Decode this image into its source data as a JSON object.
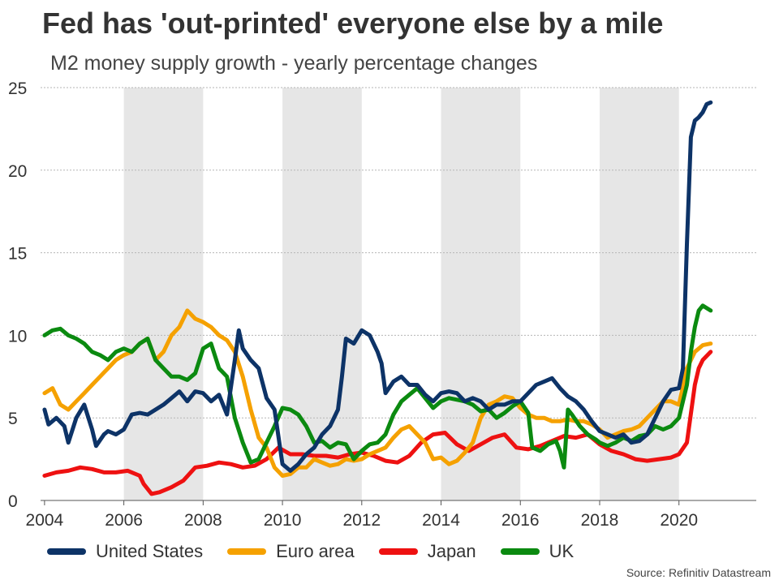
{
  "title": "Fed has 'out-printed' everyone else by a mile",
  "subtitle": "M2 money supply growth - yearly percentage changes",
  "source": "Source: Refinitiv Datastream",
  "chart_data": {
    "type": "line",
    "xlim": [
      2004,
      2022
    ],
    "ylim": [
      0,
      25
    ],
    "x_ticks": [
      2004,
      2006,
      2008,
      2010,
      2012,
      2014,
      2016,
      2018,
      2020
    ],
    "y_ticks": [
      0,
      5,
      10,
      15,
      20,
      25
    ],
    "grid": "horizontal dotted",
    "shaded_periods": [
      [
        2006,
        2008
      ],
      [
        2010,
        2012
      ],
      [
        2014,
        2016
      ],
      [
        2018,
        2020
      ]
    ],
    "legend_position": "bottom",
    "series": [
      {
        "name": "United States",
        "color": "#0d3367",
        "x": [
          2004.0,
          2004.1,
          2004.3,
          2004.5,
          2004.6,
          2004.8,
          2005.0,
          2005.2,
          2005.3,
          2005.5,
          2005.6,
          2005.8,
          2006.0,
          2006.2,
          2006.4,
          2006.6,
          2006.8,
          2007.0,
          2007.2,
          2007.4,
          2007.6,
          2007.8,
          2008.0,
          2008.2,
          2008.4,
          2008.6,
          2008.8,
          2008.9,
          2009.0,
          2009.2,
          2009.4,
          2009.6,
          2009.8,
          2010.0,
          2010.2,
          2010.4,
          2010.6,
          2010.8,
          2011.0,
          2011.2,
          2011.4,
          2011.5,
          2011.6,
          2011.8,
          2012.0,
          2012.2,
          2012.4,
          2012.5,
          2012.6,
          2012.8,
          2013.0,
          2013.2,
          2013.4,
          2013.6,
          2013.8,
          2014.0,
          2014.2,
          2014.4,
          2014.6,
          2014.8,
          2015.0,
          2015.2,
          2015.4,
          2015.6,
          2015.8,
          2016.0,
          2016.2,
          2016.4,
          2016.6,
          2016.8,
          2017.0,
          2017.2,
          2017.4,
          2017.6,
          2017.8,
          2018.0,
          2018.2,
          2018.4,
          2018.6,
          2018.8,
          2019.0,
          2019.2,
          2019.4,
          2019.6,
          2019.8,
          2020.0,
          2020.1,
          2020.2,
          2020.3,
          2020.4,
          2020.5,
          2020.6,
          2020.7,
          2020.8
        ],
        "values": [
          5.5,
          4.6,
          5.0,
          4.5,
          3.5,
          5.0,
          5.8,
          4.3,
          3.3,
          4.0,
          4.2,
          4.0,
          4.3,
          5.2,
          5.3,
          5.2,
          5.5,
          5.8,
          6.2,
          6.6,
          6.0,
          6.6,
          6.5,
          6.0,
          6.4,
          5.2,
          8.5,
          10.3,
          9.2,
          8.5,
          8.0,
          6.2,
          5.5,
          2.2,
          1.8,
          2.2,
          2.8,
          3.2,
          4.0,
          4.5,
          5.5,
          7.5,
          9.8,
          9.5,
          10.3,
          10.0,
          9.0,
          8.3,
          6.5,
          7.2,
          7.5,
          7.0,
          7.0,
          6.4,
          6.0,
          6.5,
          6.6,
          6.5,
          6.0,
          6.2,
          6.0,
          5.5,
          5.8,
          5.8,
          6.0,
          6.0,
          6.5,
          7.0,
          7.2,
          7.4,
          6.8,
          6.3,
          6.0,
          5.5,
          4.8,
          4.2,
          4.0,
          3.8,
          4.0,
          3.5,
          3.6,
          4.0,
          5.0,
          6.0,
          6.7,
          6.8,
          8.0,
          15.5,
          22.0,
          23.0,
          23.2,
          23.5,
          24.0,
          24.1
        ]
      },
      {
        "name": "Euro area",
        "color": "#f5a100",
        "x": [
          2004.0,
          2004.2,
          2004.4,
          2004.6,
          2004.8,
          2005.0,
          2005.2,
          2005.4,
          2005.6,
          2005.8,
          2006.0,
          2006.2,
          2006.4,
          2006.6,
          2006.8,
          2007.0,
          2007.2,
          2007.4,
          2007.6,
          2007.8,
          2008.0,
          2008.2,
          2008.4,
          2008.6,
          2008.8,
          2009.0,
          2009.2,
          2009.4,
          2009.6,
          2009.8,
          2010.0,
          2010.2,
          2010.4,
          2010.6,
          2010.8,
          2011.0,
          2011.2,
          2011.4,
          2011.6,
          2011.8,
          2012.0,
          2012.2,
          2012.4,
          2012.6,
          2012.8,
          2013.0,
          2013.2,
          2013.4,
          2013.6,
          2013.8,
          2014.0,
          2014.2,
          2014.4,
          2014.6,
          2014.8,
          2015.0,
          2015.2,
          2015.4,
          2015.6,
          2015.8,
          2016.0,
          2016.2,
          2016.4,
          2016.6,
          2016.8,
          2017.0,
          2017.2,
          2017.4,
          2017.6,
          2017.8,
          2018.0,
          2018.2,
          2018.4,
          2018.6,
          2018.8,
          2019.0,
          2019.2,
          2019.4,
          2019.6,
          2019.8,
          2020.0,
          2020.2,
          2020.4,
          2020.6,
          2020.8
        ],
        "values": [
          6.5,
          6.8,
          5.8,
          5.5,
          6.0,
          6.5,
          7.0,
          7.5,
          8.0,
          8.5,
          8.8,
          9.0,
          9.5,
          9.8,
          8.5,
          9.0,
          10.0,
          10.5,
          11.5,
          11.0,
          10.8,
          10.5,
          10.0,
          9.7,
          9.0,
          7.5,
          5.5,
          3.8,
          3.2,
          2.0,
          1.5,
          1.6,
          2.0,
          2.0,
          2.5,
          2.3,
          2.1,
          2.2,
          2.5,
          2.4,
          2.5,
          2.8,
          3.0,
          3.2,
          3.8,
          4.3,
          4.5,
          4.0,
          3.5,
          2.5,
          2.6,
          2.2,
          2.4,
          2.9,
          3.5,
          5.0,
          5.8,
          6.0,
          6.3,
          6.2,
          5.6,
          5.2,
          5.0,
          5.0,
          4.8,
          4.8,
          4.9,
          4.8,
          4.8,
          4.6,
          4.3,
          3.8,
          4.0,
          4.2,
          4.3,
          4.5,
          5.0,
          5.5,
          6.0,
          6.0,
          5.8,
          8.0,
          9.0,
          9.4,
          9.5
        ]
      },
      {
        "name": "Japan",
        "color": "#ee1111",
        "x": [
          2004.0,
          2004.3,
          2004.6,
          2004.9,
          2005.2,
          2005.5,
          2005.8,
          2006.1,
          2006.4,
          2006.5,
          2006.7,
          2006.9,
          2007.2,
          2007.5,
          2007.8,
          2008.1,
          2008.4,
          2008.7,
          2009.0,
          2009.3,
          2009.6,
          2009.9,
          2010.2,
          2010.5,
          2010.8,
          2011.1,
          2011.4,
          2011.7,
          2012.0,
          2012.3,
          2012.6,
          2012.9,
          2013.2,
          2013.5,
          2013.8,
          2014.1,
          2014.4,
          2014.7,
          2015.0,
          2015.3,
          2015.6,
          2015.9,
          2016.2,
          2016.5,
          2016.8,
          2017.1,
          2017.4,
          2017.7,
          2018.0,
          2018.3,
          2018.6,
          2018.9,
          2019.2,
          2019.5,
          2019.8,
          2020.0,
          2020.2,
          2020.4,
          2020.5,
          2020.6,
          2020.8
        ],
        "values": [
          1.5,
          1.7,
          1.8,
          2.0,
          1.9,
          1.7,
          1.7,
          1.8,
          1.5,
          1.0,
          0.4,
          0.5,
          0.8,
          1.2,
          2.0,
          2.1,
          2.3,
          2.2,
          2.0,
          2.1,
          2.5,
          3.2,
          2.8,
          2.8,
          2.7,
          2.7,
          2.6,
          2.8,
          2.9,
          2.7,
          2.4,
          2.3,
          2.7,
          3.5,
          4.0,
          4.1,
          3.4,
          3.0,
          3.4,
          3.8,
          4.0,
          3.2,
          3.1,
          3.3,
          3.6,
          3.9,
          3.8,
          4.0,
          3.4,
          3.0,
          2.8,
          2.5,
          2.4,
          2.5,
          2.6,
          2.8,
          3.5,
          7.0,
          8.0,
          8.5,
          9.0
        ]
      },
      {
        "name": "UK",
        "color": "#0b8a10",
        "x": [
          2004.0,
          2004.2,
          2004.4,
          2004.6,
          2004.8,
          2005.0,
          2005.2,
          2005.4,
          2005.6,
          2005.8,
          2006.0,
          2006.2,
          2006.4,
          2006.6,
          2006.8,
          2007.0,
          2007.2,
          2007.4,
          2007.6,
          2007.8,
          2008.0,
          2008.2,
          2008.4,
          2008.6,
          2008.8,
          2009.0,
          2009.2,
          2009.4,
          2009.6,
          2009.8,
          2010.0,
          2010.2,
          2010.4,
          2010.6,
          2010.8,
          2011.0,
          2011.2,
          2011.4,
          2011.6,
          2011.8,
          2012.0,
          2012.2,
          2012.4,
          2012.6,
          2012.8,
          2013.0,
          2013.2,
          2013.4,
          2013.6,
          2013.8,
          2014.0,
          2014.2,
          2014.4,
          2014.6,
          2014.8,
          2015.0,
          2015.2,
          2015.4,
          2015.6,
          2015.8,
          2016.0,
          2016.2,
          2016.3,
          2016.5,
          2016.7,
          2016.9,
          2017.0,
          2017.1,
          2017.2,
          2017.3,
          2017.5,
          2017.7,
          2017.9,
          2018.0,
          2018.2,
          2018.4,
          2018.6,
          2018.8,
          2019.0,
          2019.2,
          2019.4,
          2019.6,
          2019.8,
          2020.0,
          2020.2,
          2020.3,
          2020.4,
          2020.5,
          2020.6,
          2020.8
        ],
        "values": [
          10.0,
          10.3,
          10.4,
          10.0,
          9.8,
          9.5,
          9.0,
          8.8,
          8.5,
          9.0,
          9.2,
          9.0,
          9.5,
          9.8,
          8.5,
          8.0,
          7.5,
          7.5,
          7.3,
          7.7,
          9.2,
          9.5,
          8.0,
          7.5,
          5.0,
          3.5,
          2.3,
          2.5,
          3.5,
          4.5,
          5.6,
          5.5,
          5.2,
          4.5,
          3.5,
          3.6,
          3.2,
          3.5,
          3.4,
          2.5,
          3.0,
          3.4,
          3.5,
          4.0,
          5.2,
          6.0,
          6.4,
          6.8,
          6.2,
          5.6,
          6.0,
          6.2,
          6.1,
          6.0,
          5.8,
          5.4,
          5.5,
          5.0,
          5.3,
          5.7,
          6.0,
          5.3,
          3.2,
          3.0,
          3.4,
          3.6,
          3.0,
          2.0,
          5.5,
          5.2,
          4.5,
          4.0,
          3.7,
          3.5,
          3.3,
          3.5,
          3.8,
          3.6,
          3.9,
          4.0,
          4.5,
          4.3,
          4.5,
          5.0,
          7.0,
          9.0,
          10.5,
          11.5,
          11.8,
          11.5
        ]
      }
    ]
  }
}
